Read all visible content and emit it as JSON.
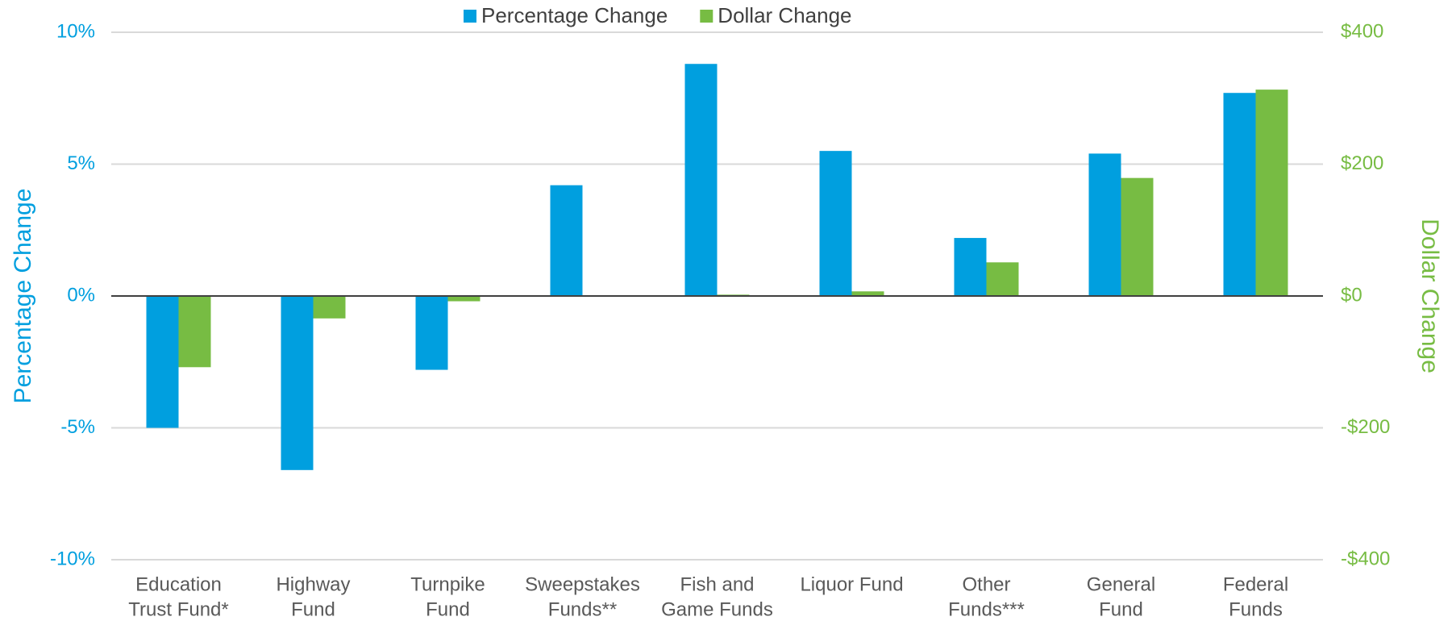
{
  "chart_data": {
    "type": "bar",
    "categories": [
      [
        "Education",
        "Trust Fund*"
      ],
      [
        "Highway",
        "Fund"
      ],
      [
        "Turnpike",
        "Fund"
      ],
      [
        "Sweepstakes",
        "Funds**"
      ],
      [
        "Fish and",
        "Game Funds"
      ],
      [
        "Liquor Fund"
      ],
      [
        "Other",
        "Funds***"
      ],
      [
        "General",
        "Fund"
      ],
      [
        "Federal",
        "Funds"
      ]
    ],
    "series": [
      {
        "name": "Percentage Change",
        "color": "#009fdf",
        "values": [
          -5.0,
          -6.6,
          -2.8,
          4.2,
          8.8,
          5.5,
          2.2,
          5.4,
          7.7
        ]
      },
      {
        "name": "Dollar Change",
        "color": "#77bc43",
        "axis": "y2",
        "values": [
          -108,
          -34,
          -8,
          0,
          2,
          7,
          51,
          179,
          313
        ]
      }
    ],
    "ylabel": "Percentage Change",
    "y2label": "Dollar Change",
    "ylim": [
      -10,
      10
    ],
    "yticks": [
      {
        "value": -10,
        "label": "-10%"
      },
      {
        "value": -5,
        "label": "-5%"
      },
      {
        "value": 0,
        "label": "0%"
      },
      {
        "value": 5,
        "label": "5%"
      },
      {
        "value": 10,
        "label": "10%"
      }
    ],
    "y2lim": [
      -400,
      400
    ],
    "y2ticks": [
      {
        "value": -400,
        "label": "-$400"
      },
      {
        "value": -200,
        "label": "-$200"
      },
      {
        "value": 0,
        "label": "$0"
      },
      {
        "value": 200,
        "label": "$200"
      },
      {
        "value": 400,
        "label": "$400"
      }
    ],
    "grid": true,
    "legend": "top"
  }
}
